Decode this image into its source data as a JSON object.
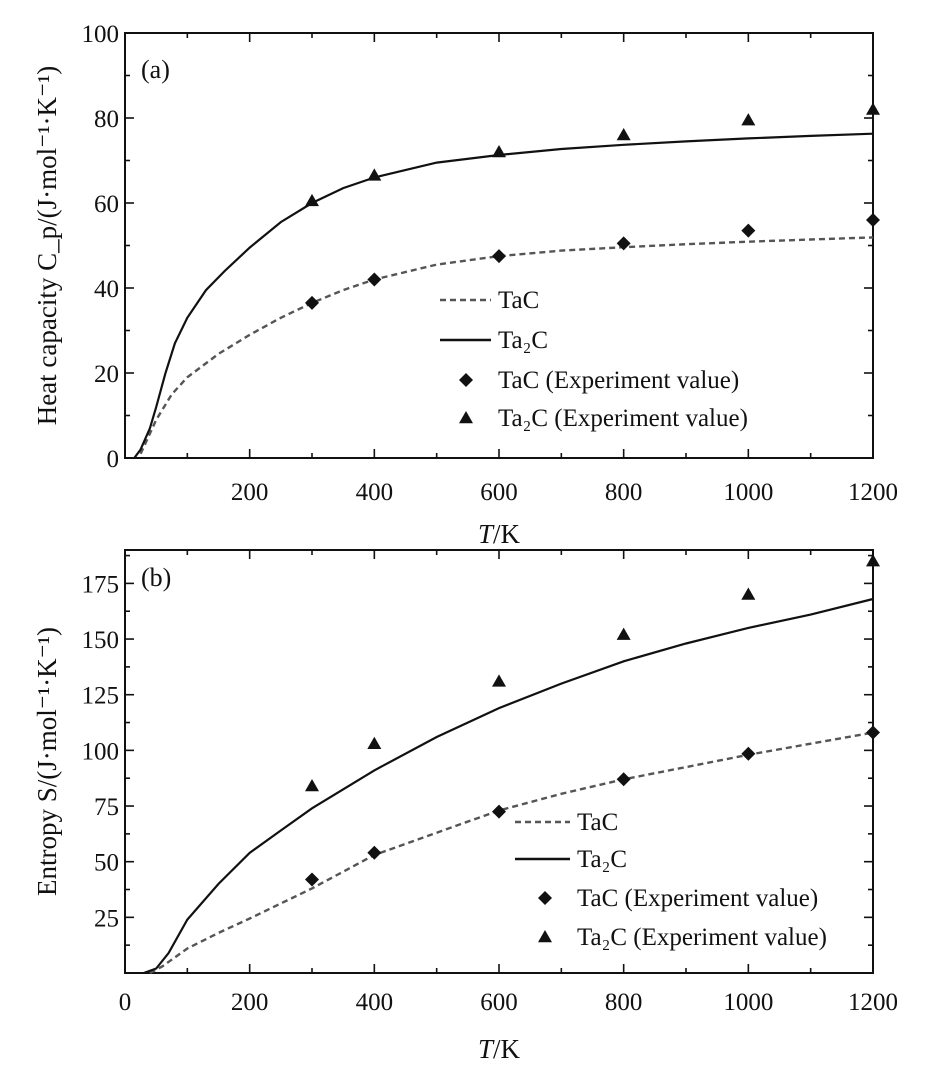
{
  "chart_data": [
    {
      "type": "line",
      "panel_label": "(a)",
      "xlabel_italic": "T",
      "xlabel_rest": "/K",
      "ylabel": "Heat capacity C_p/(J·mol⁻¹·K⁻¹)",
      "xlim": [
        0,
        1200
      ],
      "ylim": [
        0,
        100
      ],
      "xticks": [
        200,
        400,
        600,
        800,
        1000,
        1200
      ],
      "yticks": [
        0,
        20,
        40,
        60,
        80,
        100
      ],
      "legend_position": "center",
      "series": [
        {
          "name": "TaC",
          "style": "dashed",
          "color": "#555555",
          "x": [
            25,
            50,
            75,
            100,
            150,
            200,
            250,
            300,
            350,
            400,
            500,
            600,
            700,
            800,
            900,
            1000,
            1100,
            1200
          ],
          "y": [
            1,
            9,
            15,
            19,
            24.5,
            29,
            33,
            36.5,
            39.5,
            42,
            45.5,
            47.5,
            48.8,
            49.6,
            50.3,
            50.9,
            51.4,
            51.9
          ]
        },
        {
          "name": "Ta₂C",
          "style": "solid",
          "color": "#111111",
          "x": [
            15,
            25,
            40,
            50,
            65,
            80,
            100,
            130,
            160,
            200,
            250,
            300,
            350,
            400,
            500,
            600,
            700,
            800,
            900,
            1000,
            1100,
            1200
          ],
          "y": [
            0,
            2,
            7,
            12,
            20,
            27,
            33,
            39.5,
            44,
            49.5,
            55.5,
            60,
            63.5,
            66,
            69.5,
            71.3,
            72.7,
            73.7,
            74.5,
            75.2,
            75.8,
            76.3
          ]
        },
        {
          "name": "TaC (Experiment value)",
          "marker": "diamond",
          "color": "#111111",
          "x": [
            300,
            400,
            600,
            800,
            1000,
            1200
          ],
          "y": [
            36.5,
            42,
            47.5,
            50.5,
            53.5,
            56
          ]
        },
        {
          "name": "Ta₂C (Experiment value)",
          "marker": "triangle",
          "color": "#111111",
          "x": [
            300,
            400,
            600,
            800,
            1000,
            1200
          ],
          "y": [
            60.5,
            66.5,
            72,
            76,
            79.5,
            82
          ]
        }
      ]
    },
    {
      "type": "line",
      "panel_label": "(b)",
      "xlabel_italic": "T",
      "xlabel_rest": "/K",
      "ylabel": "Entropy S/(J·mol⁻¹·K⁻¹)",
      "xlim": [
        0,
        1200
      ],
      "ylim": [
        0,
        190
      ],
      "xticks": [
        0,
        200,
        400,
        600,
        800,
        1000,
        1200
      ],
      "yticks": [
        25,
        50,
        75,
        100,
        125,
        150,
        175
      ],
      "legend_position": "bottom-right",
      "series": [
        {
          "name": "TaC",
          "style": "dashed",
          "color": "#555555",
          "x": [
            40,
            60,
            80,
            100,
            150,
            200,
            300,
            400,
            500,
            600,
            700,
            800,
            900,
            1000,
            1100,
            1200
          ],
          "y": [
            0,
            3,
            7,
            11,
            18,
            24.5,
            38,
            53,
            63,
            73,
            80.5,
            87,
            92.5,
            98,
            103,
            108
          ]
        },
        {
          "name": "Ta₂C",
          "style": "solid",
          "color": "#111111",
          "x": [
            30,
            50,
            70,
            100,
            150,
            200,
            250,
            300,
            400,
            500,
            600,
            700,
            800,
            900,
            1000,
            1100,
            1200
          ],
          "y": [
            0,
            2,
            9,
            24,
            40,
            54,
            64,
            74,
            91,
            106,
            119,
            130,
            140,
            148,
            155,
            161,
            168
          ]
        },
        {
          "name": "TaC (Experiment value)",
          "marker": "diamond",
          "color": "#111111",
          "x": [
            300,
            400,
            600,
            800,
            1000,
            1200
          ],
          "y": [
            42,
            54,
            72.5,
            87,
            98.5,
            108
          ]
        },
        {
          "name": "Ta₂C (Experiment value)",
          "marker": "triangle",
          "color": "#111111",
          "x": [
            300,
            400,
            600,
            800,
            1000,
            1200
          ],
          "y": [
            84,
            103,
            131,
            152,
            170,
            185
          ]
        }
      ]
    }
  ]
}
